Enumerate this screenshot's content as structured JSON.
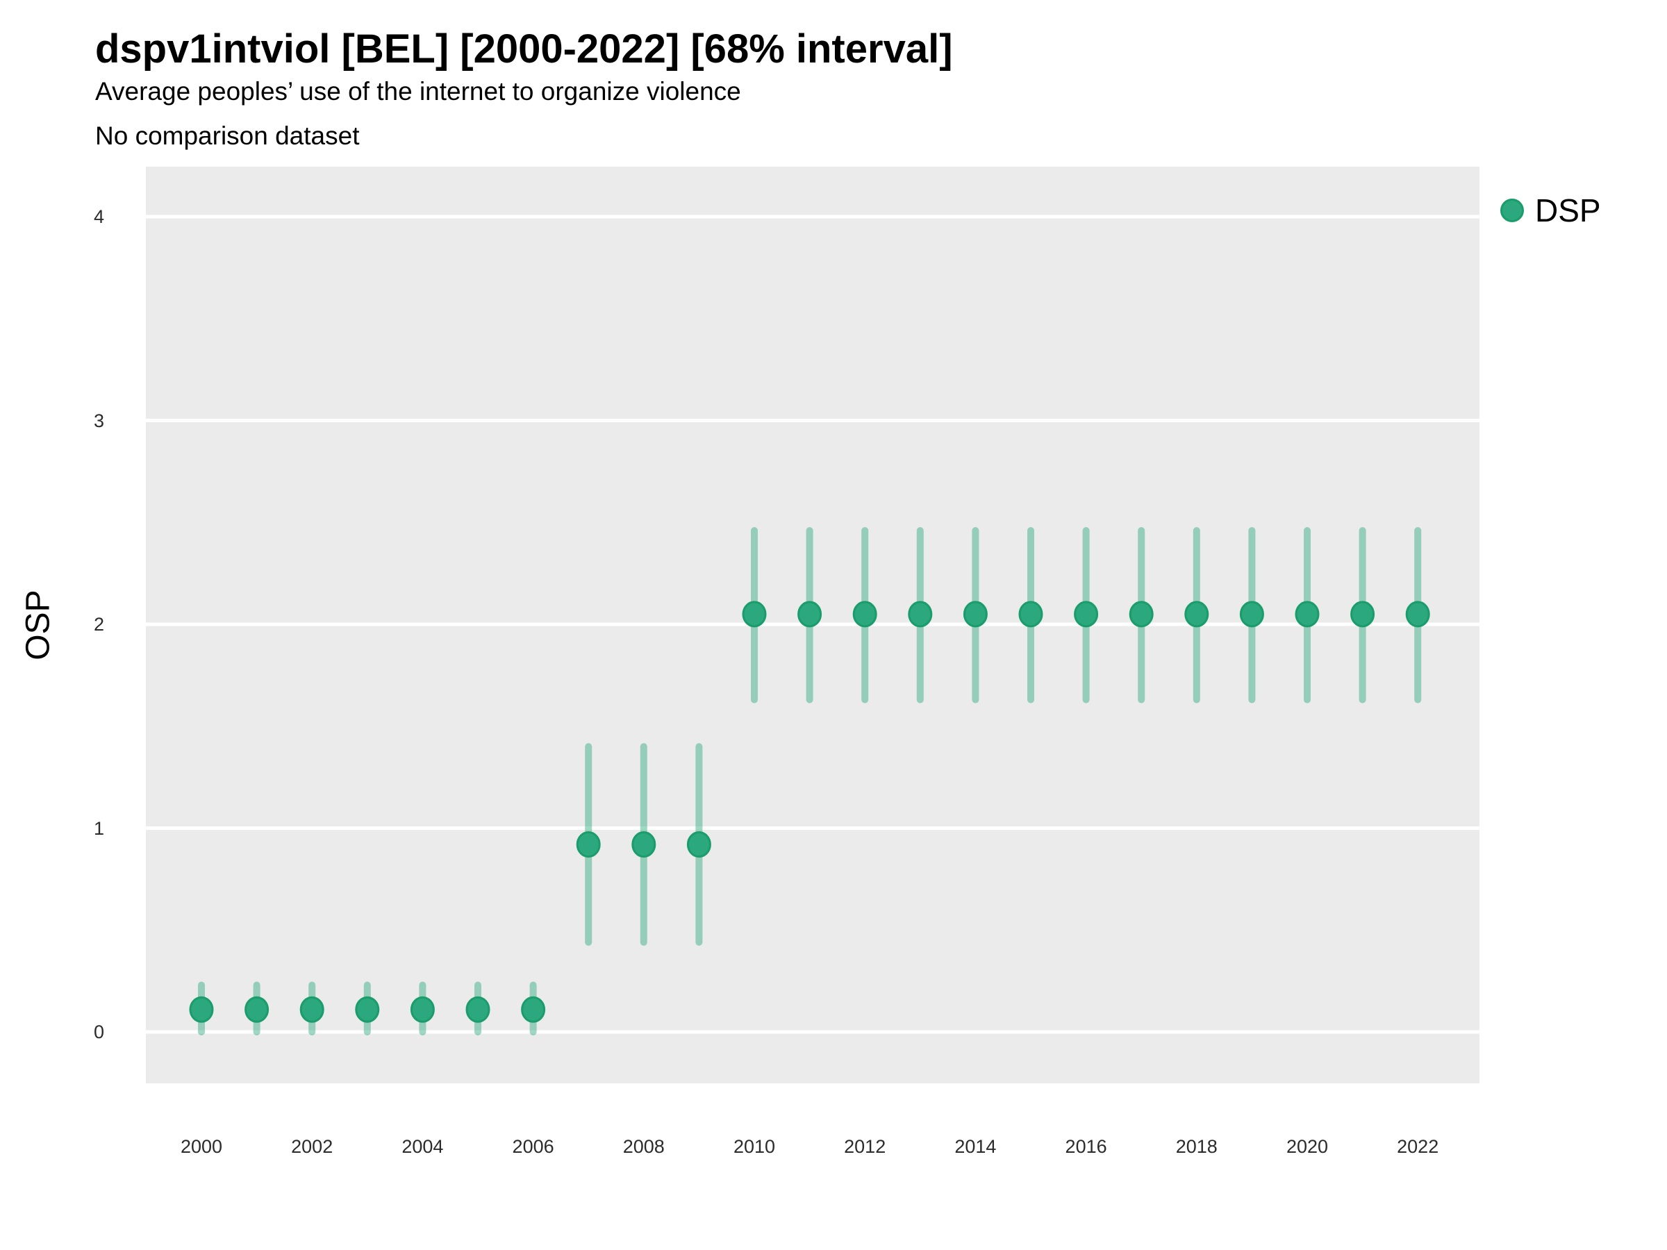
{
  "title": "dspv1intviol [BEL] [2000-2022] [68% interval]",
  "subtitle": "Average peoples’ use of the internet to organize violence",
  "note": "No comparison dataset",
  "legend": {
    "position": "right-top",
    "items": [
      {
        "label": "DSP",
        "marker": "circle-icon",
        "color": "#2BA87D"
      }
    ]
  },
  "colors": {
    "panel_bg": "#EBEBEB",
    "grid": "#FFFFFF",
    "point_fill": "#2BA87D",
    "point_stroke": "#1B9C6C",
    "interval_bar": "rgba(43,168,125,0.45)",
    "tick_text": "#2b2b2b",
    "text": "#000000"
  },
  "chart_data": {
    "type": "scatter",
    "title": "dspv1intviol [BEL] [2000-2022] [68% interval]",
    "subtitle": "Average peoples’ use of the internet to organize violence",
    "annotation": "No comparison dataset",
    "xlabel": "",
    "ylabel": "OSP",
    "interval_level": "68%",
    "grid": "horizontal white major gridlines on grey panel, no vertical gridlines, no axis lines or tick marks",
    "legend_position": "right-top",
    "x_ticks": [
      2000,
      2002,
      2004,
      2006,
      2008,
      2010,
      2012,
      2014,
      2016,
      2018,
      2020,
      2022
    ],
    "y_ticks": [
      0,
      1,
      2,
      3,
      4
    ],
    "xlim": [
      1999,
      2023.1
    ],
    "ylim": [
      -0.24,
      4.24
    ],
    "series": [
      {
        "name": "DSP",
        "color": "#2BA87D",
        "points": [
          {
            "year": 2000,
            "value": 0.11,
            "low": 0.0,
            "high": 0.23
          },
          {
            "year": 2001,
            "value": 0.11,
            "low": 0.0,
            "high": 0.23
          },
          {
            "year": 2002,
            "value": 0.11,
            "low": 0.0,
            "high": 0.23
          },
          {
            "year": 2003,
            "value": 0.11,
            "low": 0.0,
            "high": 0.23
          },
          {
            "year": 2004,
            "value": 0.11,
            "low": 0.0,
            "high": 0.23
          },
          {
            "year": 2005,
            "value": 0.11,
            "low": 0.0,
            "high": 0.23
          },
          {
            "year": 2006,
            "value": 0.11,
            "low": 0.0,
            "high": 0.23
          },
          {
            "year": 2007,
            "value": 0.92,
            "low": 0.44,
            "high": 1.4
          },
          {
            "year": 2008,
            "value": 0.92,
            "low": 0.44,
            "high": 1.4
          },
          {
            "year": 2009,
            "value": 0.92,
            "low": 0.44,
            "high": 1.4
          },
          {
            "year": 2010,
            "value": 2.05,
            "low": 1.63,
            "high": 2.46
          },
          {
            "year": 2011,
            "value": 2.05,
            "low": 1.63,
            "high": 2.46
          },
          {
            "year": 2012,
            "value": 2.05,
            "low": 1.63,
            "high": 2.46
          },
          {
            "year": 2013,
            "value": 2.05,
            "low": 1.63,
            "high": 2.46
          },
          {
            "year": 2014,
            "value": 2.05,
            "low": 1.63,
            "high": 2.46
          },
          {
            "year": 2015,
            "value": 2.05,
            "low": 1.63,
            "high": 2.46
          },
          {
            "year": 2016,
            "value": 2.05,
            "low": 1.63,
            "high": 2.46
          },
          {
            "year": 2017,
            "value": 2.05,
            "low": 1.63,
            "high": 2.46
          },
          {
            "year": 2018,
            "value": 2.05,
            "low": 1.63,
            "high": 2.46
          },
          {
            "year": 2019,
            "value": 2.05,
            "low": 1.63,
            "high": 2.46
          },
          {
            "year": 2020,
            "value": 2.05,
            "low": 1.63,
            "high": 2.46
          },
          {
            "year": 2021,
            "value": 2.05,
            "low": 1.63,
            "high": 2.46
          },
          {
            "year": 2022,
            "value": 2.05,
            "low": 1.63,
            "high": 2.46
          }
        ]
      }
    ]
  }
}
